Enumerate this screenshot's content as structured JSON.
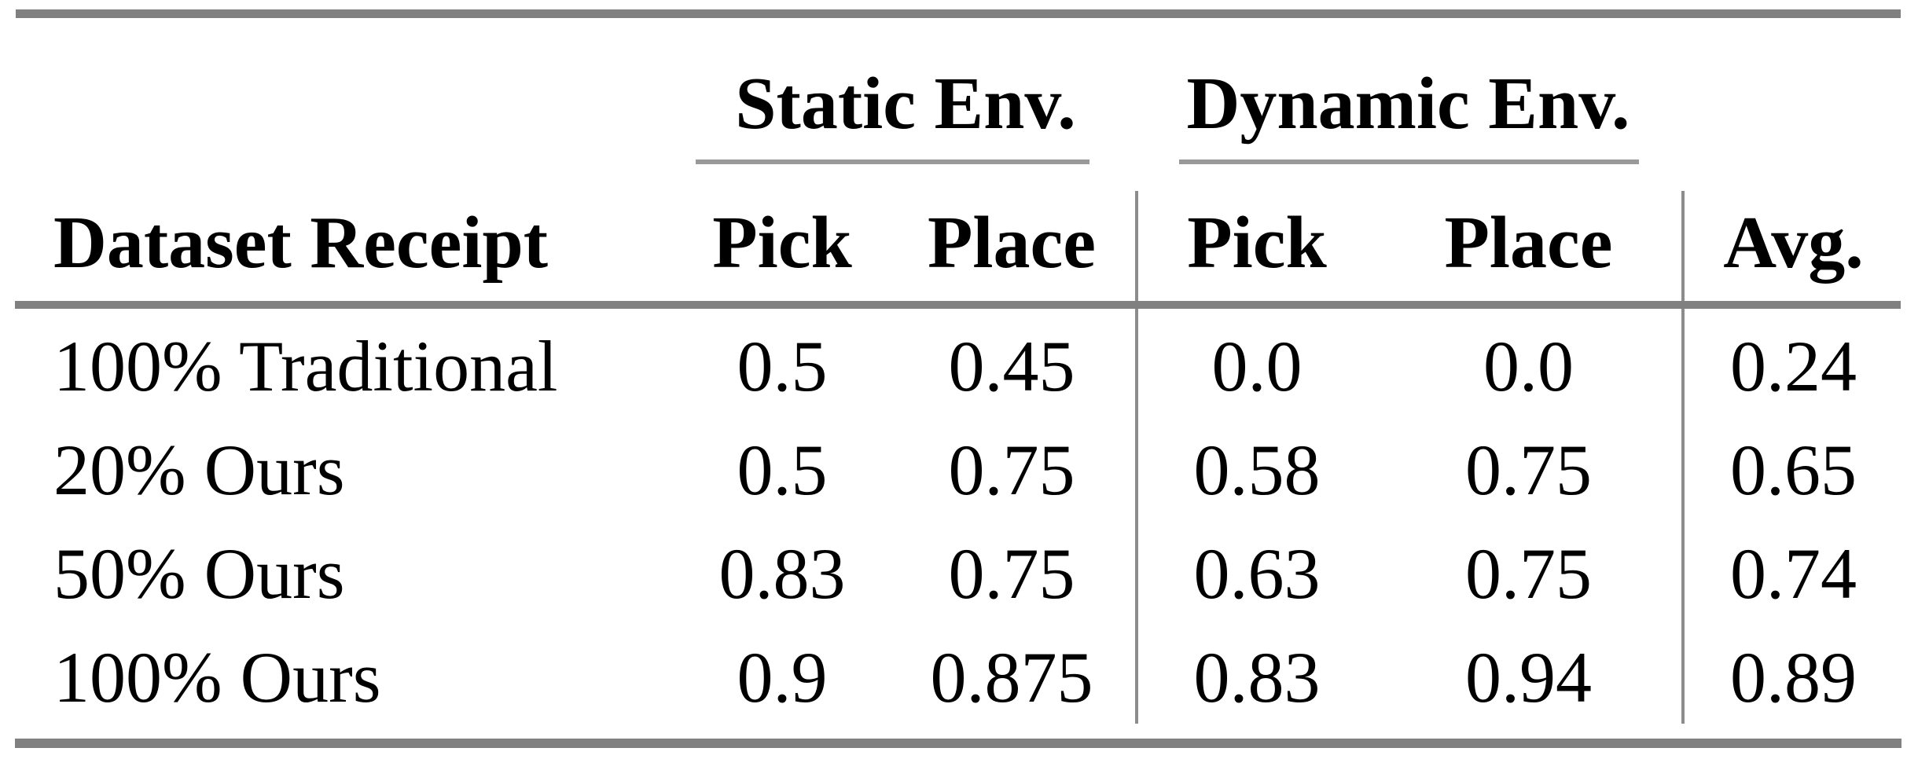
{
  "table": {
    "column_groups": [
      {
        "label": "Static Env."
      },
      {
        "label": "Dynamic Env."
      }
    ],
    "headers": {
      "row_label": "Dataset Receipt",
      "static_pick": "Pick",
      "static_place": "Place",
      "dynamic_pick": "Pick",
      "dynamic_place": "Place",
      "avg": "Avg."
    },
    "rows": [
      {
        "label": "100% Traditional",
        "static_pick": "0.5",
        "static_place": "0.45",
        "dynamic_pick": "0.0",
        "dynamic_place": "0.0",
        "avg": "0.24"
      },
      {
        "label": "20% Ours",
        "static_pick": "0.5",
        "static_place": "0.75",
        "dynamic_pick": "0.58",
        "dynamic_place": "0.75",
        "avg": "0.65"
      },
      {
        "label": "50% Ours",
        "static_pick": "0.83",
        "static_place": "0.75",
        "dynamic_pick": "0.63",
        "dynamic_place": "0.75",
        "avg": "0.74"
      },
      {
        "label": "100% Ours",
        "static_pick": "0.9",
        "static_place": "0.875",
        "dynamic_pick": "0.83",
        "dynamic_place": "0.94",
        "avg": "0.89"
      }
    ]
  },
  "colors": {
    "rule_heavy": "#808080",
    "rule_light": "#999999",
    "vertical_separator": "#8c8c8c",
    "text": "#000000",
    "background": "#ffffff"
  },
  "chart_data": {
    "type": "table",
    "columns": [
      "Dataset Receipt",
      "Static Env. Pick",
      "Static Env. Place",
      "Dynamic Env. Pick",
      "Dynamic Env. Place",
      "Avg."
    ],
    "rows": [
      [
        "100% Traditional",
        0.5,
        0.45,
        0.0,
        0.0,
        0.24
      ],
      [
        "20% Ours",
        0.5,
        0.75,
        0.58,
        0.75,
        0.65
      ],
      [
        "50% Ours",
        0.83,
        0.75,
        0.63,
        0.75,
        0.74
      ],
      [
        "100% Ours",
        0.9,
        0.875,
        0.83,
        0.94,
        0.89
      ]
    ]
  }
}
